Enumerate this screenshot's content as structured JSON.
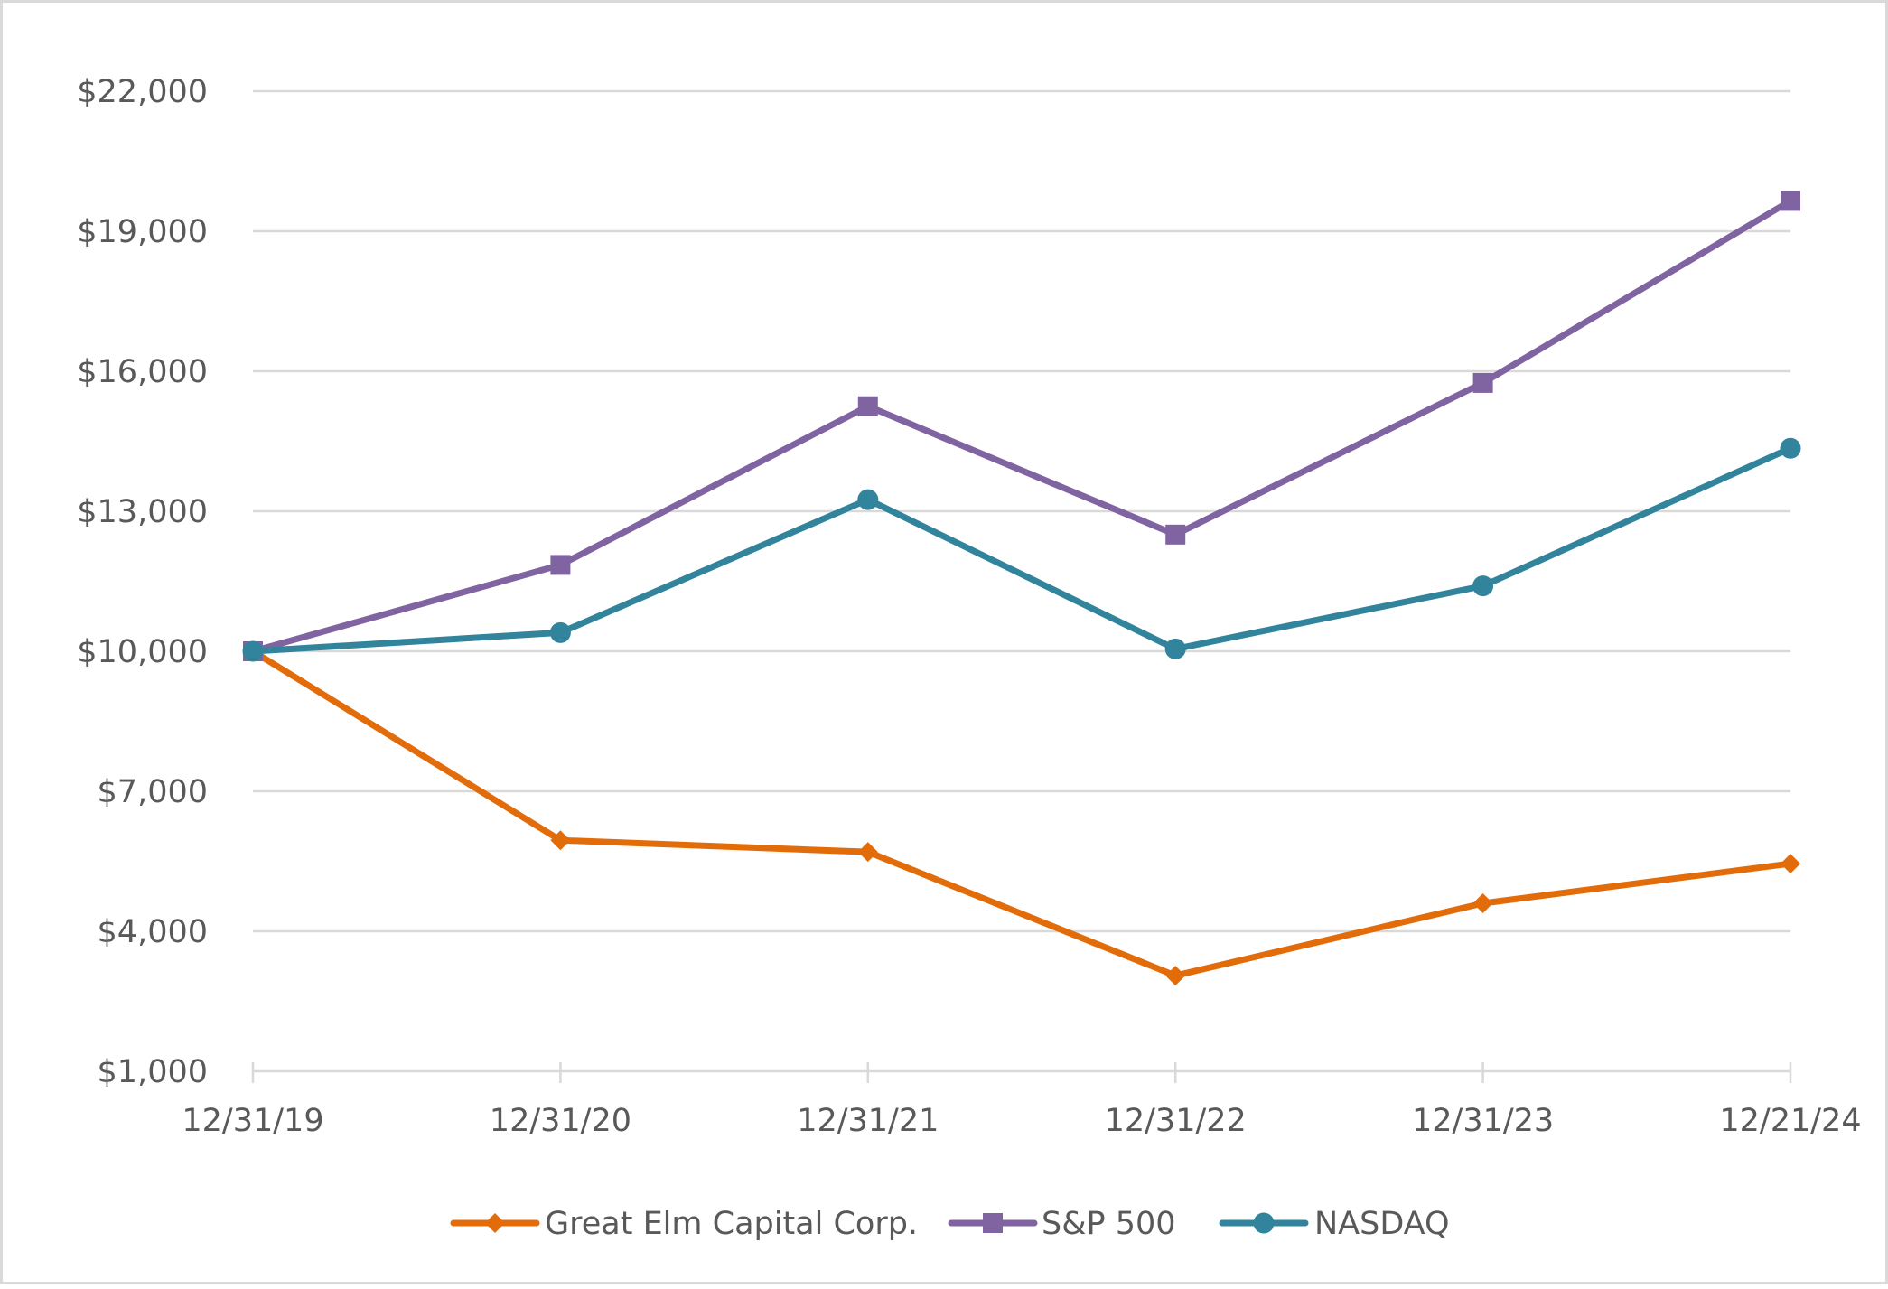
{
  "chart_data": {
    "type": "line",
    "title": "",
    "xlabel": "",
    "ylabel": "",
    "categories": [
      "12/31/19",
      "12/31/20",
      "12/31/21",
      "12/31/22",
      "12/31/23",
      "12/21/24"
    ],
    "ylim": [
      1000,
      22000
    ],
    "yticks": [
      1000,
      4000,
      7000,
      10000,
      13000,
      16000,
      19000,
      22000
    ],
    "ytick_labels": [
      "$1,000",
      "$4,000",
      "$7,000",
      "$10,000",
      "$13,000",
      "$16,000",
      "$19,000",
      "$22,000"
    ],
    "grid": true,
    "legend_position": "bottom",
    "series": [
      {
        "name": "Great Elm Capital Corp.",
        "color": "#E36C0A",
        "marker": "diamond",
        "values": [
          10000,
          5950,
          5700,
          3050,
          4600,
          5450
        ]
      },
      {
        "name": "S&P 500",
        "color": "#8064A2",
        "marker": "square",
        "values": [
          10000,
          11850,
          15250,
          12500,
          15750,
          19650
        ]
      },
      {
        "name": "NASDAQ",
        "color": "#31849B",
        "marker": "circle",
        "values": [
          10000,
          10400,
          13250,
          10050,
          11400,
          14350
        ]
      }
    ]
  }
}
